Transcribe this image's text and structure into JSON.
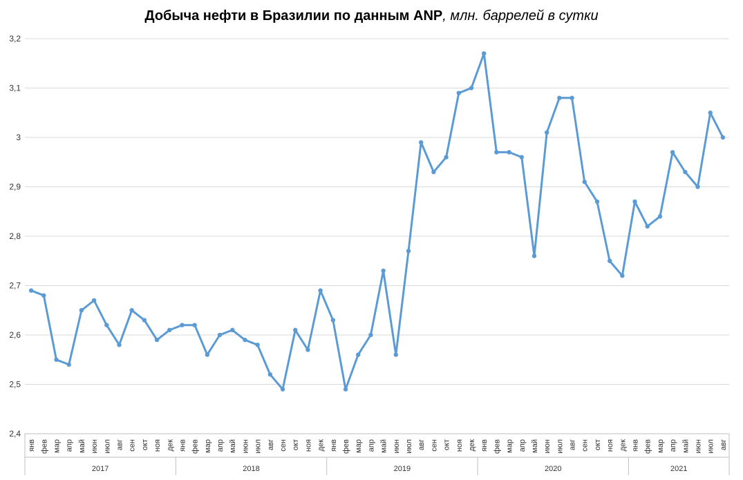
{
  "title": {
    "main": "Добыча нефти в Бразилии по данным ANP",
    "sub": ", млн. баррелей в сутки"
  },
  "colors": {
    "series": "#5b9bd5",
    "grid": "#d9d9d9",
    "axis": "#bfbfbf"
  },
  "chart_data": {
    "type": "line",
    "title": "Добыча нефти в Бразилии по данным ANP, млн. баррелей в сутки",
    "xlabel": "",
    "ylabel": "",
    "ylim": [
      2.4,
      3.2
    ],
    "yticks": [
      "2,4",
      "2,5",
      "2,6",
      "2,7",
      "2,8",
      "2,9",
      "3",
      "3,1",
      "3,2"
    ],
    "grid": true,
    "legend": "none",
    "years": [
      {
        "label": "2017",
        "months": 12
      },
      {
        "label": "2018",
        "months": 12
      },
      {
        "label": "2019",
        "months": 12
      },
      {
        "label": "2020",
        "months": 12
      },
      {
        "label": "2021",
        "months": 8
      }
    ],
    "categories": [
      "янв",
      "фев",
      "мар",
      "апр",
      "май",
      "июн",
      "июл",
      "авг",
      "сен",
      "окт",
      "ноя",
      "дек",
      "янв",
      "фев",
      "мар",
      "апр",
      "май",
      "июн",
      "июл",
      "авг",
      "сен",
      "окт",
      "ноя",
      "дек",
      "янв",
      "фев",
      "мар",
      "апр",
      "май",
      "июн",
      "июл",
      "авг",
      "сен",
      "окт",
      "ноя",
      "дек",
      "янв",
      "фев",
      "мар",
      "апр",
      "май",
      "июн",
      "июл",
      "авг",
      "сен",
      "окт",
      "ноя",
      "дек",
      "янв",
      "фев",
      "мар",
      "апр",
      "май",
      "июн",
      "июл",
      "авг"
    ],
    "series": [
      {
        "values": [
          2.69,
          2.68,
          2.55,
          2.54,
          2.65,
          2.67,
          2.62,
          2.58,
          2.65,
          2.63,
          2.59,
          2.61,
          2.62,
          2.62,
          2.56,
          2.6,
          2.61,
          2.59,
          2.58,
          2.52,
          2.49,
          2.61,
          2.57,
          2.69,
          2.63,
          2.49,
          2.56,
          2.6,
          2.73,
          2.56,
          2.77,
          2.99,
          2.93,
          2.96,
          3.09,
          3.1,
          3.17,
          2.97,
          2.97,
          2.96,
          2.76,
          3.01,
          3.08,
          3.08,
          2.91,
          2.87,
          2.75,
          2.72,
          2.87,
          2.82,
          2.84,
          2.97,
          2.93,
          2.9,
          3.05,
          3.0
        ]
      }
    ]
  }
}
